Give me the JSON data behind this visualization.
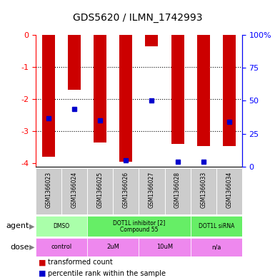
{
  "title": "GDS5620 / ILMN_1742993",
  "samples": [
    "GSM1366023",
    "GSM1366024",
    "GSM1366025",
    "GSM1366026",
    "GSM1366027",
    "GSM1366028",
    "GSM1366033",
    "GSM1366034"
  ],
  "bar_values": [
    -3.8,
    -1.7,
    -3.35,
    -3.95,
    -0.35,
    -3.4,
    -3.45,
    -3.45
  ],
  "dot_values": [
    -2.6,
    -2.3,
    -2.65,
    -3.9,
    -2.05,
    -3.95,
    -3.95,
    -2.7
  ],
  "y_ticks": [
    0,
    -1,
    -2,
    -3,
    -4
  ],
  "y_tick_labels": [
    "0",
    "-1",
    "-2",
    "-3",
    "-4"
  ],
  "right_tick_pcts": [
    0,
    25,
    50,
    75,
    100
  ],
  "right_tick_labels": [
    "0",
    "25",
    "50",
    "75",
    "100%"
  ],
  "ymin": -4.1,
  "ymax": 0,
  "bar_color": "#cc0000",
  "dot_color": "#0000cc",
  "sample_bg_color": "#cccccc",
  "agent_groups": [
    {
      "label": "DMSO",
      "start": 0,
      "end": 2,
      "color": "#aaffaa"
    },
    {
      "label": "DOT1L inhibitor [2]\nCompound 55",
      "start": 2,
      "end": 6,
      "color": "#66ee66"
    },
    {
      "label": "DOT1L siRNA",
      "start": 6,
      "end": 8,
      "color": "#66ee66"
    }
  ],
  "dose_groups": [
    {
      "label": "control",
      "start": 0,
      "end": 2,
      "color": "#ee88ee"
    },
    {
      "label": "2uM",
      "start": 2,
      "end": 4,
      "color": "#ee88ee"
    },
    {
      "label": "10uM",
      "start": 4,
      "end": 6,
      "color": "#ee88ee"
    },
    {
      "label": "n/a",
      "start": 6,
      "end": 8,
      "color": "#ee88ee"
    }
  ],
  "legend_bar_label": "transformed count",
  "legend_dot_label": "percentile rank within the sample",
  "agent_label": "agent",
  "dose_label": "dose"
}
